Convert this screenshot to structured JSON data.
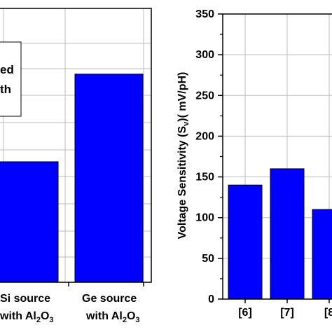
{
  "chart_data": [
    {
      "type": "bar",
      "panel": "left",
      "categories": [
        "",
        "Si source with Al2O3",
        "Ge source with Al2O3"
      ],
      "category_labels": [
        {
          "line1": "Si source",
          "line2_prefix": "with Al",
          "line2_sub1": "2",
          "line2_mid": "O",
          "line2_sub2": "3"
        },
        {
          "line1": "Ge source",
          "line2_prefix": "with Al",
          "line2_sub1": "2",
          "line2_mid": "O",
          "line2_sub2": "3"
        }
      ],
      "values": [
        null,
        0.44,
        0.76
      ],
      "ylim": [
        0,
        1
      ],
      "grid": true,
      "legend_partial_text": [
        "ed",
        "th"
      ],
      "bar_color": "#0000ff"
    },
    {
      "type": "bar",
      "panel": "right",
      "categories": [
        "[6]",
        "[7]",
        "[8"
      ],
      "values": [
        140,
        160,
        110
      ],
      "ylim": [
        0,
        350
      ],
      "yticks": [
        "0",
        "50",
        "100",
        "150",
        "200",
        "250",
        "300",
        "350"
      ],
      "ylabel": {
        "prefix": "Voltage Sensitivity (S",
        "sub": "v",
        "suffix": ")( mV/pH)"
      },
      "grid": true,
      "bar_color": "#0000ff"
    }
  ]
}
